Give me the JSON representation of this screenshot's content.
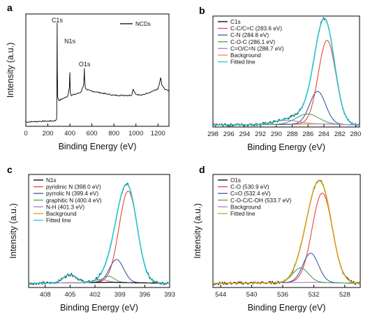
{
  "chart_data": [
    {
      "panel": "a",
      "type": "line",
      "xlabel": "Binding Energy (eV)",
      "ylabel": "Intensity (a.u.)",
      "xlim": [
        0,
        1300
      ],
      "x_ticks": [
        0,
        200,
        400,
        600,
        800,
        1000,
        1200
      ],
      "y_ticks_shown": false,
      "legend_position": "top-right",
      "annotations": [
        {
          "text": "C1s",
          "x": 285
        },
        {
          "text": "N1s",
          "x": 400
        },
        {
          "text": "O1s",
          "x": 532
        }
      ],
      "series": [
        {
          "name": "NCDs",
          "color": "#000000",
          "x": [
            0,
            60,
            120,
            180,
            240,
            270,
            280,
            283,
            284.6,
            286,
            290,
            300,
            340,
            380,
            396,
            398,
            400,
            402,
            404,
            410,
            450,
            500,
            525,
            530,
            532,
            534,
            540,
            560,
            600,
            650,
            700,
            750,
            800,
            850,
            900,
            960,
            975,
            990,
            1000,
            1050,
            1100,
            1150,
            1200,
            1215,
            1225,
            1235,
            1260,
            1300
          ],
          "y": [
            0.04,
            0.045,
            0.048,
            0.05,
            0.052,
            0.055,
            0.075,
            0.6,
            1.0,
            0.55,
            0.28,
            0.25,
            0.27,
            0.29,
            0.38,
            0.48,
            0.52,
            0.4,
            0.33,
            0.3,
            0.31,
            0.33,
            0.4,
            0.5,
            0.56,
            0.46,
            0.37,
            0.35,
            0.34,
            0.33,
            0.32,
            0.31,
            0.3,
            0.3,
            0.3,
            0.3,
            0.36,
            0.33,
            0.31,
            0.3,
            0.32,
            0.34,
            0.36,
            0.42,
            0.47,
            0.4,
            0.36,
            0.34
          ]
        }
      ]
    },
    {
      "panel": "b",
      "type": "line",
      "xlabel": "Binding Energy (eV)",
      "ylabel": "",
      "xlim": [
        298,
        279.5
      ],
      "x_ticks": [
        298,
        296,
        294,
        292,
        290,
        288,
        286,
        284,
        282,
        280
      ],
      "y_ticks_shown": false,
      "legend_position": "top-left",
      "background": {
        "name": "Background",
        "color": "#d4a017",
        "x": [
          298,
          290,
          284,
          279.5
        ],
        "y": [
          0.02,
          0.025,
          0.03,
          0.02
        ]
      },
      "components": [
        {
          "name": "C-C/C=C (283.6 eV)",
          "color": "#e8463a",
          "center": 283.6,
          "height": 0.82,
          "width": 1.1
        },
        {
          "name": "C-N (284.8 eV)",
          "color": "#3b5ba9",
          "center": 284.8,
          "height": 0.32,
          "width": 1.0
        },
        {
          "name": "C-O-C (286.1 eV)",
          "color": "#4f9f5a",
          "center": 286.1,
          "height": 0.1,
          "width": 1.4
        },
        {
          "name": "C=O/C=N (288.7 eV)",
          "color": "#b07cc8",
          "center": 288.7,
          "height": 0.04,
          "width": 1.6
        }
      ],
      "raw": {
        "name": "C1s",
        "color": "#000000"
      },
      "fit": {
        "name": "Fitted line",
        "color": "#26c6d0"
      }
    },
    {
      "panel": "c",
      "type": "line",
      "xlabel": "Binding Energy (eV)",
      "ylabel": "Intensity (a.u.)",
      "xlim": [
        410,
        393
      ],
      "x_ticks": [
        408,
        405,
        402,
        399,
        396,
        393
      ],
      "y_ticks_shown": false,
      "legend_position": "top-left",
      "background": {
        "name": "Background",
        "color": "#d4a017",
        "x": [
          410,
          400,
          393
        ],
        "y": [
          0.04,
          0.05,
          0.04
        ]
      },
      "components": [
        {
          "name": "pyridinic N (398.0 eV)",
          "color": "#e8463a",
          "center": 398.0,
          "height": 0.88,
          "width": 1.1
        },
        {
          "name": "pyrrolic N (399.4 eV)",
          "color": "#3b5ba9",
          "center": 399.4,
          "height": 0.22,
          "width": 0.85
        },
        {
          "name": "graphitic N (400.4 eV)",
          "color": "#4f9f5a",
          "center": 400.4,
          "height": 0.06,
          "width": 0.7
        },
        {
          "name": "N-H (401.3 eV)",
          "color": "#b07cc8",
          "center": 401.3,
          "height": 0.03,
          "width": 0.7
        },
        {
          "name": "",
          "color": "#000000",
          "center": 405.0,
          "height": 0.08,
          "width": 0.8
        }
      ],
      "raw": {
        "name": "N1s",
        "color": "#000000"
      },
      "fit": {
        "name": "Fitted line",
        "color": "#26c6d0"
      }
    },
    {
      "panel": "d",
      "type": "line",
      "xlabel": "Binding Energy (eV)",
      "ylabel": "Intensity (a.u.)",
      "xlim": [
        545,
        526
      ],
      "x_ticks": [
        544,
        540,
        536,
        532,
        528
      ],
      "y_ticks_shown": false,
      "legend_position": "top-left",
      "background": {
        "name": "Background",
        "color": "#b07cc8",
        "x": [
          545,
          532,
          526
        ],
        "y": [
          0.04,
          0.05,
          0.04
        ]
      },
      "components": [
        {
          "name": "C-O (530.9 eV)",
          "color": "#e8463a",
          "center": 530.9,
          "height": 0.86,
          "width": 1.3
        },
        {
          "name": "C=O (532.4 eV)",
          "color": "#3b5ba9",
          "center": 532.4,
          "height": 0.28,
          "width": 1.0
        },
        {
          "name": "C-O-C/C-OH (533.7 eV)",
          "color": "#4f9f5a",
          "center": 533.7,
          "height": 0.14,
          "width": 1.0
        }
      ],
      "raw": {
        "name": "O1s",
        "color": "#000000"
      },
      "fit": {
        "name": "Fitted line",
        "color": "#d4a017"
      }
    }
  ]
}
